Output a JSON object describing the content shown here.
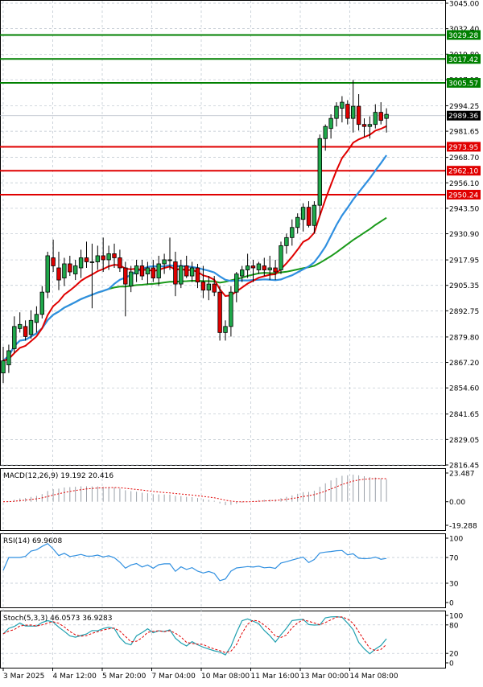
{
  "chart_data": {
    "type": "candlestick",
    "instrument_timeframe": "",
    "price_axis": {
      "labels": [
        "3045.00",
        "3032.40",
        "3019.80",
        "3007.15",
        "2994.25",
        "2981.65",
        "2968.70",
        "2956.10",
        "2943.50",
        "2930.90",
        "2917.95",
        "2905.35",
        "2892.75",
        "2879.80",
        "2867.20",
        "2854.60",
        "2841.65",
        "2829.05",
        "2816.45"
      ],
      "range": [
        2816.45,
        3045.0
      ]
    },
    "time_axis": {
      "labels": [
        "3 Mar 2025",
        "4 Mar 12:00",
        "5 Mar 20:00",
        "7 Mar 04:00",
        "10 Mar 08:00",
        "11 Mar 16:00",
        "13 Mar 00:00",
        "14 Mar 08:00"
      ]
    },
    "current_price": "2989.36",
    "levels": [
      {
        "value": "3029.28",
        "color": "#008000"
      },
      {
        "value": "3017.42",
        "color": "#008000"
      },
      {
        "value": "3005.57",
        "color": "#008000"
      },
      {
        "value": "2973.95",
        "color": "#e00000"
      },
      {
        "value": "2962.10",
        "color": "#e00000"
      },
      {
        "value": "2950.24",
        "color": "#e00000"
      }
    ],
    "candles": [
      [
        2862,
        2875,
        2857,
        2868
      ],
      [
        2866,
        2876,
        2862,
        2873
      ],
      [
        2874,
        2890,
        2872,
        2885
      ],
      [
        2884,
        2892,
        2882,
        2886
      ],
      [
        2885,
        2888,
        2878,
        2880
      ],
      [
        2881,
        2893,
        2879,
        2888
      ],
      [
        2887,
        2895,
        2882,
        2891
      ],
      [
        2891,
        2905,
        2889,
        2902
      ],
      [
        2902,
        2922,
        2899,
        2920
      ],
      [
        2919,
        2928,
        2912,
        2915
      ],
      [
        2914,
        2922,
        2903,
        2908
      ],
      [
        2909,
        2919,
        2905,
        2916
      ],
      [
        2916,
        2920,
        2910,
        2912
      ],
      [
        2911,
        2918,
        2908,
        2915
      ],
      [
        2914,
        2923,
        2909,
        2919
      ],
      [
        2919,
        2927,
        2914,
        2917
      ],
      [
        2917,
        2926,
        2894,
        2917
      ],
      [
        2917,
        2925,
        2913,
        2920
      ],
      [
        2920,
        2929,
        2912,
        2918
      ],
      [
        2918,
        2925,
        2913,
        2921
      ],
      [
        2921,
        2926,
        2914,
        2919
      ],
      [
        2919,
        2923,
        2912,
        2914
      ],
      [
        2914,
        2917,
        2890,
        2906
      ],
      [
        2905,
        2915,
        2902,
        2912
      ],
      [
        2911,
        2918,
        2907,
        2915
      ],
      [
        2915,
        2918,
        2908,
        2910
      ],
      [
        2911,
        2917,
        2906,
        2914
      ],
      [
        2914,
        2918,
        2907,
        2909
      ],
      [
        2909,
        2920,
        2905,
        2916
      ],
      [
        2916,
        2921,
        2911,
        2918
      ],
      [
        2918,
        2929,
        2913,
        2918
      ],
      [
        2917,
        2922,
        2900,
        2906
      ],
      [
        2906,
        2918,
        2904,
        2915
      ],
      [
        2915,
        2920,
        2909,
        2910
      ],
      [
        2910,
        2917,
        2907,
        2914
      ],
      [
        2914,
        2916,
        2904,
        2907
      ],
      [
        2907,
        2915,
        2899,
        2903
      ],
      [
        2903,
        2910,
        2898,
        2906
      ],
      [
        2906,
        2910,
        2900,
        2902
      ],
      [
        2902,
        2905,
        2878,
        2882
      ],
      [
        2882,
        2888,
        2878,
        2885
      ],
      [
        2885,
        2905,
        2880,
        2902
      ],
      [
        2902,
        2912,
        2897,
        2911
      ],
      [
        2910,
        2915,
        2907,
        2913
      ],
      [
        2913,
        2921,
        2909,
        2915
      ],
      [
        2915,
        2918,
        2907,
        2914
      ],
      [
        2913,
        2917,
        2911,
        2916
      ],
      [
        2915,
        2919,
        2910,
        2913
      ],
      [
        2913,
        2920,
        2908,
        2914
      ],
      [
        2914,
        2918,
        2908,
        2912
      ],
      [
        2913,
        2927,
        2911,
        2925
      ],
      [
        2925,
        2931,
        2921,
        2929
      ],
      [
        2929,
        2938,
        2925,
        2934
      ],
      [
        2934,
        2941,
        2931,
        2939
      ],
      [
        2938,
        2946,
        2932,
        2944
      ],
      [
        2944,
        2947,
        2934,
        2935
      ],
      [
        2935,
        2947,
        2931,
        2945
      ],
      [
        2945,
        2980,
        2940,
        2978
      ],
      [
        2978,
        2985,
        2972,
        2984
      ],
      [
        2983,
        2990,
        2978,
        2988
      ],
      [
        2988,
        2996,
        2984,
        2994
      ],
      [
        2993,
        2999,
        2986,
        2996
      ],
      [
        2995,
        2997,
        2985,
        2988
      ],
      [
        2988,
        3007,
        2981,
        2994
      ],
      [
        2994,
        3000,
        2982,
        2985
      ],
      [
        2985,
        2988,
        2979,
        2984
      ],
      [
        2984,
        2989,
        2978,
        2985
      ],
      [
        2985,
        2995,
        2983,
        2991
      ],
      [
        2991,
        2996,
        2985,
        2987
      ],
      [
        2988,
        2993,
        2981,
        2990
      ]
    ],
    "macd": {
      "label": "MACD(12,26,9) 19.192 20.416",
      "axis_labels": [
        "23.487",
        "0.00",
        "-19.288"
      ]
    },
    "rsi": {
      "label": "RSI(14) 69.9608",
      "axis_labels": [
        "100",
        "70",
        "30",
        "0"
      ]
    },
    "stoch": {
      "label": "Stoch(5,3,3) 46.0573 36.9283",
      "axis_labels": [
        "100",
        "80",
        "20",
        "0"
      ]
    }
  }
}
